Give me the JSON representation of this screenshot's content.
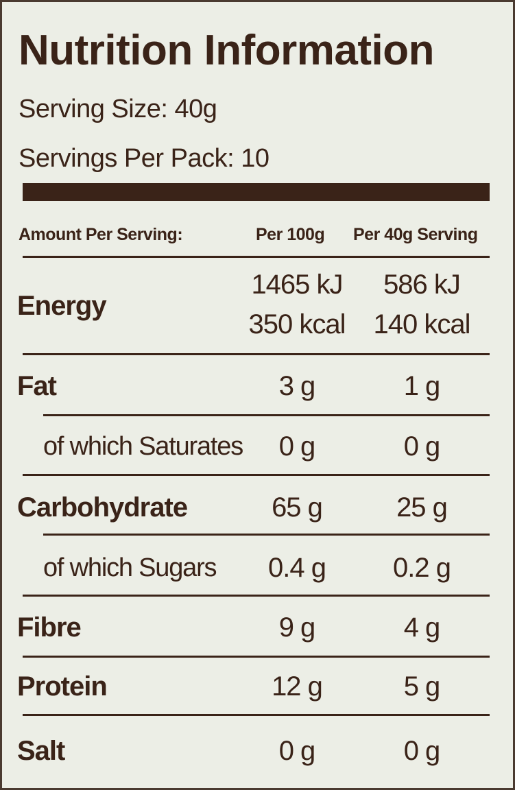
{
  "title": "Nutrition Information",
  "serving_size": "Serving Size: 40g",
  "servings_per_pack": "Servings Per Pack: 10",
  "table": {
    "header": [
      "Amount Per Serving:",
      "Per 100g",
      "Per 40g Serving"
    ],
    "rows": [
      [
        "Energy",
        [
          "1465 kJ",
          "350 kcal"
        ],
        [
          "586 kJ",
          "140 kcal"
        ]
      ],
      [
        "Fat",
        "3 g",
        "1 g"
      ],
      [
        "of which Saturates",
        "0 g",
        "0 g"
      ],
      [
        "Carbohydrate",
        "65 g",
        "25 g"
      ],
      [
        "of which Sugars",
        "0.4 g",
        "0.2 g"
      ],
      [
        "Fibre",
        "9 g",
        "4 g"
      ],
      [
        "Protein",
        "12 g",
        "5 g"
      ],
      [
        "Salt",
        "0 g",
        "0 g"
      ]
    ]
  }
}
